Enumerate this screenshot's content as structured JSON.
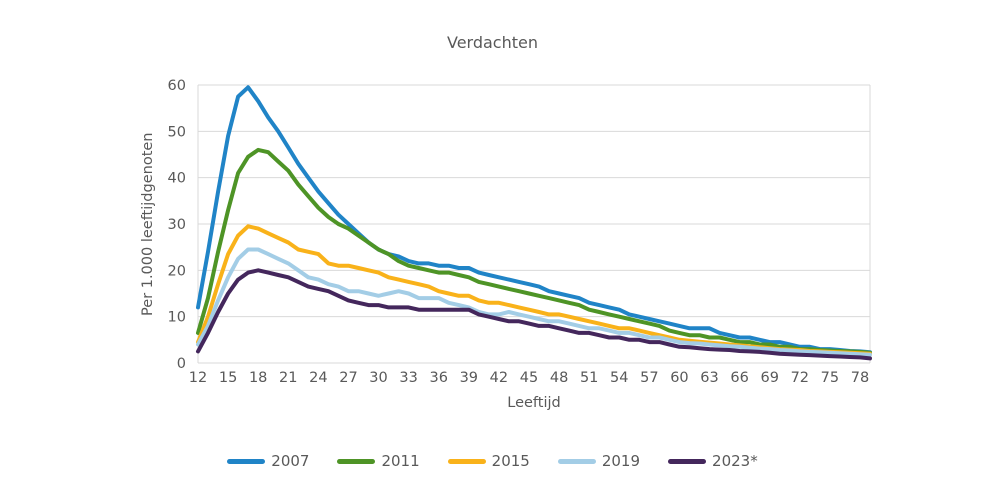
{
  "page": {
    "background": "#ffffff",
    "text_color": "#595959",
    "gridline_color": "#d9d9d9"
  },
  "chart_data": {
    "type": "line",
    "title": "Verdachten",
    "xlabel": "Leeftijd",
    "ylabel": "Per 1.000 leeftijdgenoten",
    "ylim": [
      0,
      60
    ],
    "yticks": [
      0,
      10,
      20,
      30,
      40,
      50,
      60
    ],
    "xticks": [
      12,
      15,
      18,
      21,
      24,
      27,
      30,
      33,
      36,
      39,
      42,
      45,
      48,
      51,
      54,
      57,
      60,
      63,
      66,
      69,
      72,
      75,
      78
    ],
    "x_min": 12,
    "x_max": 79,
    "grid": "horizontal",
    "legend_position": "bottom",
    "x": [
      12,
      13,
      14,
      15,
      16,
      17,
      18,
      19,
      20,
      21,
      22,
      23,
      24,
      25,
      26,
      27,
      28,
      29,
      30,
      31,
      32,
      33,
      34,
      35,
      36,
      37,
      38,
      39,
      40,
      41,
      42,
      43,
      44,
      45,
      46,
      47,
      48,
      49,
      50,
      51,
      52,
      53,
      54,
      55,
      56,
      57,
      58,
      59,
      60,
      61,
      62,
      63,
      64,
      65,
      66,
      67,
      68,
      69,
      70,
      71,
      72,
      73,
      74,
      75,
      76,
      77,
      78,
      79
    ],
    "series": [
      {
        "name": "2007",
        "color": "#2084c7",
        "values": [
          12,
          24,
          37,
          49,
          57.5,
          59.5,
          56.5,
          53,
          50,
          46.5,
          43,
          40,
          37,
          34.5,
          32,
          30,
          28,
          26,
          24.5,
          23.5,
          23,
          22,
          21.5,
          21.5,
          21,
          21,
          20.5,
          20.5,
          19.5,
          19,
          18.5,
          18,
          17.5,
          17,
          16.5,
          15.5,
          15,
          14.5,
          14,
          13,
          12.5,
          12,
          11.5,
          10.5,
          10,
          9.5,
          9,
          8.5,
          8,
          7.5,
          7.5,
          7.5,
          6.5,
          6,
          5.5,
          5.5,
          5,
          4.5,
          4.5,
          4,
          3.5,
          3.5,
          3,
          3,
          2.8,
          2.6,
          2.5,
          2.3
        ]
      },
      {
        "name": "2011",
        "color": "#4e9426",
        "values": [
          6.5,
          14,
          24,
          33,
          41,
          44.5,
          46,
          45.5,
          43.5,
          41.5,
          38.5,
          36,
          33.5,
          31.5,
          30,
          29,
          27.5,
          26,
          24.5,
          23.5,
          22,
          21,
          20.5,
          20,
          19.5,
          19.5,
          19,
          18.5,
          17.5,
          17,
          16.5,
          16,
          15.5,
          15,
          14.5,
          14,
          13.5,
          13,
          12.5,
          11.5,
          11,
          10.5,
          10,
          9.5,
          9,
          8.5,
          8,
          7,
          6.5,
          6,
          6,
          5.5,
          5.5,
          5,
          4.5,
          4.5,
          4,
          4,
          3.5,
          3.5,
          3,
          3,
          2.8,
          2.7,
          2.6,
          2.5,
          2.4,
          2.2
        ]
      },
      {
        "name": "2015",
        "color": "#f9b21a",
        "values": [
          4.5,
          10,
          17,
          23.5,
          27.5,
          29.5,
          29,
          28,
          27,
          26,
          24.5,
          24,
          23.5,
          21.5,
          21,
          21,
          20.5,
          20,
          19.5,
          18.5,
          18,
          17.5,
          17,
          16.5,
          15.5,
          15,
          14.5,
          14.5,
          13.5,
          13,
          13,
          12.5,
          12,
          11.5,
          11,
          10.5,
          10.5,
          10,
          9.5,
          9,
          8.5,
          8,
          7.5,
          7.5,
          7,
          6.5,
          6,
          5.5,
          5,
          4.8,
          4.6,
          4.4,
          4.2,
          4,
          3.8,
          3.6,
          3.4,
          3.2,
          3,
          2.9,
          2.8,
          2.6,
          2.5,
          2.4,
          2.3,
          2.2,
          2.1,
          2
        ]
      },
      {
        "name": "2019",
        "color": "#a3cde6",
        "values": [
          4,
          8,
          13.5,
          18.5,
          22.5,
          24.5,
          24.5,
          23.5,
          22.5,
          21.5,
          20,
          18.5,
          18,
          17,
          16.5,
          15.5,
          15.5,
          15,
          14.5,
          15,
          15.5,
          15,
          14,
          14,
          14,
          13,
          12.5,
          12,
          11,
          10.5,
          10.5,
          11,
          10.5,
          10,
          9.5,
          9,
          9,
          8.5,
          8,
          7.5,
          7.5,
          7,
          6.5,
          6.5,
          6,
          5.5,
          5.5,
          5,
          4.5,
          4.3,
          4.2,
          4,
          3.8,
          3.6,
          3.5,
          3.3,
          3.1,
          3,
          2.8,
          2.7,
          2.5,
          2.4,
          2.3,
          2.2,
          2.1,
          2,
          1.9,
          1.8
        ]
      },
      {
        "name": "2023*",
        "color": "#44275c",
        "values": [
          2.5,
          6.5,
          11,
          15,
          18,
          19.5,
          20,
          19.5,
          19,
          18.5,
          17.5,
          16.5,
          16,
          15.5,
          14.5,
          13.5,
          13,
          12.5,
          12.5,
          12,
          12,
          12,
          11.5,
          11.5,
          11.5,
          11.5,
          11.5,
          11.5,
          10.5,
          10,
          9.5,
          9,
          9,
          8.5,
          8,
          8,
          7.5,
          7,
          6.5,
          6.5,
          6,
          5.5,
          5.5,
          5,
          5,
          4.5,
          4.5,
          4,
          3.5,
          3.4,
          3.2,
          3,
          2.9,
          2.8,
          2.6,
          2.5,
          2.4,
          2.2,
          2,
          1.9,
          1.8,
          1.7,
          1.6,
          1.5,
          1.4,
          1.3,
          1.2,
          1
        ]
      }
    ]
  }
}
